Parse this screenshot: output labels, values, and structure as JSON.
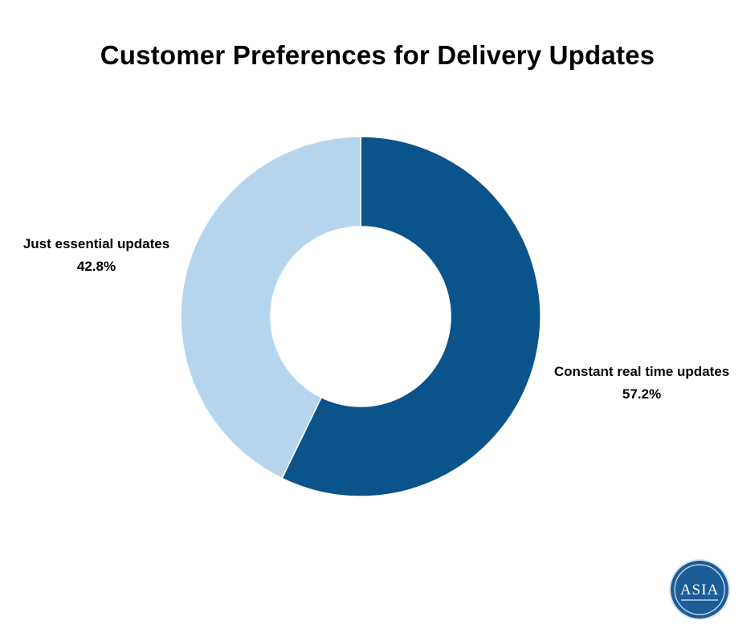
{
  "chart_data": {
    "type": "pie",
    "title": "Customer Preferences for Delivery Updates",
    "slices": [
      {
        "label": "Constant real time updates",
        "value": 57.2,
        "value_label": "57.2%",
        "color": "#0b538b"
      },
      {
        "label": "Just essential updates",
        "value": 42.8,
        "value_label": "42.8%",
        "color": "#b5d5ef"
      }
    ],
    "donut": true,
    "legend": "none"
  },
  "logo": {
    "text": "ASIA",
    "color": "#1c5d98"
  }
}
